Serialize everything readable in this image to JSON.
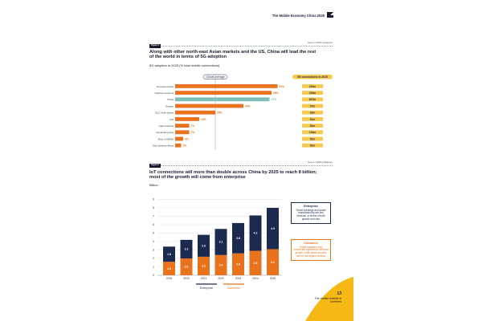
{
  "header": {
    "doc_title": "The Mobile Economy China 2025"
  },
  "figure4": {
    "tag": "Figure 4",
    "source": "Source: GSMA Intelligence",
    "title": "Along with other north-east Asian markets and the US, China will lead the rest of the world in terms of 5G adoption",
    "subtitle": "5G adoption in 2025 (% total mobile connections)",
    "global_average_label": "Global average",
    "connections_header": "5G connections in 2025"
  },
  "figure5": {
    "tag": "Figure 5",
    "source": "Source: GSMA Intelligence",
    "title": "IoT connections will more than double across China by 2025 to reach 8 billion; most of the growth will come from enterprise",
    "unit_label": "Billion",
    "legend": {
      "enterprise": "Enterprise",
      "consumer": "Consumer"
    },
    "enterprise_box": {
      "title": "Enterprise",
      "body": "Smart buildings and smart manufacturing are key verticals, in terms of both growth and size"
    },
    "consumer_box": {
      "title": "Consumer",
      "body": "Smart speakers and connected appliances will lead growth, while home security will be the largest vertical"
    }
  },
  "footer": {
    "page_number": "13",
    "note": "The mobile market in numbers"
  },
  "colors": {
    "navy": "#1b2a4e",
    "orange": "#e8731c",
    "teal": "#7fbfb5",
    "yellow": "#f5b814",
    "pill": "#f7c94d",
    "grid": "#d8dbe2"
  },
  "chart_data": [
    {
      "type": "bar",
      "orientation": "horizontal",
      "title": "Along with other north-east Asian markets and the US, China will lead the rest of the world in terms of 5G adoption",
      "subtitle": "5G adoption in 2025 (% total mobile connections)",
      "xlim": [
        0,
        60
      ],
      "reference_line": {
        "label": "Global average",
        "value": 20
      },
      "categories": [
        "Developed Asia",
        "Northern America",
        "China",
        "Europe",
        "GCC Arab States",
        "CIS",
        "Latin America",
        "Developing Asia",
        "Rest of MENA",
        "Sub-Saharan Africa"
      ],
      "values": [
        51,
        48,
        47,
        34,
        20,
        12,
        7,
        7,
        4,
        3
      ],
      "value_labels": [
        "51%",
        "48%",
        "47%",
        "34%",
        "20%",
        "12%",
        "7%",
        "7%",
        "4%",
        "3%"
      ],
      "highlight_category": "China",
      "side_labels_header": "5G connections in 2025",
      "side_labels": [
        "161m",
        "205m",
        "807m",
        "27m",
        "16m",
        "51m",
        "51m",
        "194m",
        "51m",
        "51m"
      ],
      "grid": false
    },
    {
      "type": "bar",
      "stacked": true,
      "title": "IoT connections will more than double across China by 2025 to reach 8 billion; most of the growth will come from enterprise",
      "ylabel": "Billion",
      "ylim": [
        0,
        9
      ],
      "yticks": [
        0,
        1,
        2,
        3,
        4,
        5,
        6,
        7,
        8,
        9
      ],
      "categories": [
        "2019",
        "2020",
        "2021",
        "2022",
        "2023",
        "2024",
        "2025"
      ],
      "series": [
        {
          "name": "Consumer",
          "values": [
            1.6,
            2.0,
            2.2,
            2.4,
            2.6,
            2.9,
            3.1
          ],
          "labels": [
            "1.6",
            "2.0",
            "2.2",
            "2.4",
            "2.6",
            "2.9",
            "3.1"
          ]
        },
        {
          "name": "Enterprise",
          "values": [
            1.8,
            2.2,
            2.6,
            3.1,
            3.6,
            4.2,
            4.9
          ],
          "labels": [
            "1.8",
            "2.2",
            "2.6",
            "3.1",
            "3.6",
            "4.2",
            "4.9"
          ]
        }
      ],
      "legend": "bottom",
      "grid": true
    }
  ]
}
